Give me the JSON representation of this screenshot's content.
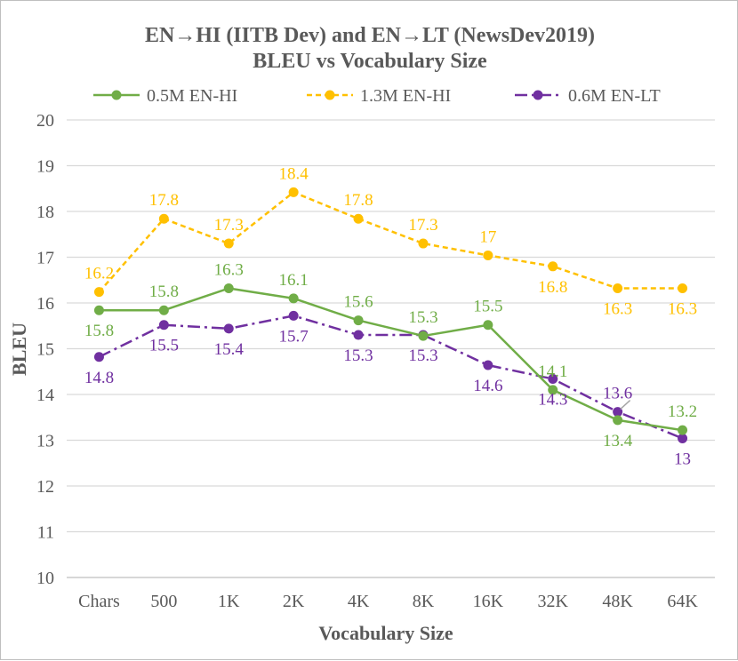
{
  "chart_data": {
    "type": "line",
    "title": "EN→HI (IITB Dev) and EN→LT (NewsDev2019)",
    "subtitle": "BLEU vs Vocabulary Size",
    "xlabel": "Vocabulary Size",
    "ylabel": "BLEU",
    "ylim": [
      10,
      20
    ],
    "yticks": [
      "10",
      "11",
      "12",
      "13",
      "14",
      "15",
      "16",
      "17",
      "18",
      "19",
      "20"
    ],
    "grid": true,
    "legend_position": "top",
    "categories": [
      "Chars",
      "500",
      "1K",
      "2K",
      "4K",
      "8K",
      "16K",
      "32K",
      "48K",
      "64K"
    ],
    "series": [
      {
        "name": "0.5M EN-HI",
        "color": "#70ad47",
        "style": "solid",
        "values": [
          15.84,
          15.84,
          16.32,
          16.1,
          15.62,
          15.28,
          15.52,
          14.1,
          13.44,
          13.22
        ],
        "labels": [
          "15.8",
          "15.8",
          "16.3",
          "16.1",
          "15.6",
          "15.3",
          "15.5",
          "14.1",
          "13.4",
          "13.2"
        ]
      },
      {
        "name": "1.3M EN-HI",
        "color": "#ffc000",
        "style": "dashed",
        "values": [
          16.24,
          17.84,
          17.3,
          18.42,
          17.84,
          17.3,
          17.04,
          16.8,
          16.32,
          16.32
        ],
        "labels": [
          "16.2",
          "17.8",
          "17.3",
          "18.4",
          "17.8",
          "17.3",
          "17",
          "16.8",
          "16.3",
          "16.3"
        ]
      },
      {
        "name": "0.6M EN-LT",
        "color": "#7030a0",
        "style": "dashdot",
        "values": [
          14.82,
          15.52,
          15.44,
          15.72,
          15.3,
          15.3,
          14.64,
          14.34,
          13.62,
          13.04
        ],
        "labels": [
          "14.8",
          "15.5",
          "15.4",
          "15.7",
          "15.3",
          "15.3",
          "14.6",
          "14.3",
          "13.6",
          "13"
        ]
      }
    ]
  }
}
